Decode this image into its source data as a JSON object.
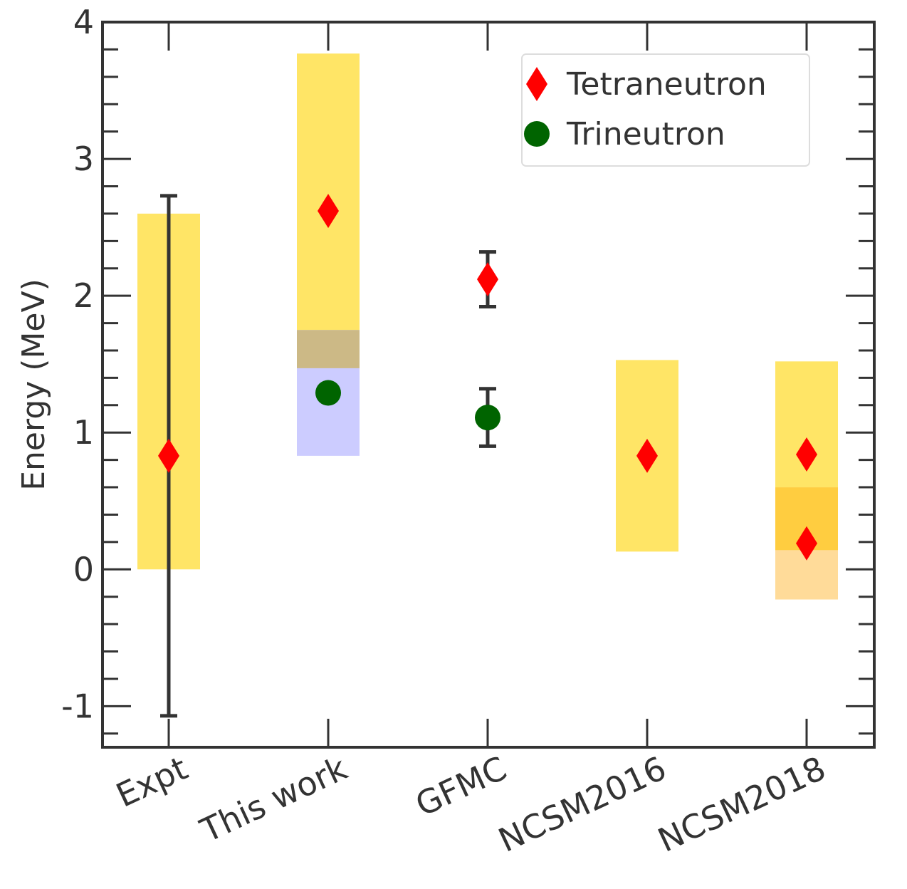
{
  "chart_data": {
    "type": "scatter",
    "ylabel": "Energy (MeV)",
    "ylim": [
      -1.3,
      4.0
    ],
    "yticks": [
      -1,
      0,
      1,
      2,
      3,
      4
    ],
    "yminor_step": 0.2,
    "categories": [
      "Expt",
      "This work",
      "GFMC",
      "NCSM2016",
      "NCSM2018"
    ],
    "legend": {
      "position": "top-right",
      "entries": [
        {
          "name": "Tetraneutron",
          "marker": "diamond",
          "color": "#ff0000"
        },
        {
          "name": "Trineutron",
          "marker": "circle",
          "color": "#006400"
        }
      ]
    },
    "bands": [
      {
        "category": "Expt",
        "low": 0.0,
        "high": 2.6,
        "color": "#ffe566"
      },
      {
        "category": "This work",
        "low": 1.75,
        "high": 3.77,
        "color": "#ffe566"
      },
      {
        "category": "This work",
        "low": 1.47,
        "high": 1.75,
        "color": "#ccb986"
      },
      {
        "category": "This work",
        "low": 0.83,
        "high": 1.47,
        "color": "#ccccff"
      },
      {
        "category": "NCSM2016",
        "low": 0.13,
        "high": 1.53,
        "color": "#ffe566"
      },
      {
        "category": "NCSM2018",
        "low": 0.6,
        "high": 1.52,
        "color": "#ffe566"
      },
      {
        "category": "NCSM2018",
        "low": 0.14,
        "high": 0.6,
        "color": "#ffcd40"
      },
      {
        "category": "NCSM2018",
        "low": -0.22,
        "high": 0.14,
        "color": "#ffdb99"
      }
    ],
    "series": [
      {
        "name": "Tetraneutron",
        "marker": "diamond",
        "color": "#ff0000",
        "points": [
          {
            "category": "Expt",
            "y": 0.83,
            "err_low": -1.07,
            "err_high": 2.73
          },
          {
            "category": "This work",
            "y": 2.62
          },
          {
            "category": "GFMC",
            "y": 2.12,
            "err_low": 1.92,
            "err_high": 2.32
          },
          {
            "category": "NCSM2016",
            "y": 0.83
          },
          {
            "category": "NCSM2018",
            "y": 0.84
          },
          {
            "category": "NCSM2018",
            "y": 0.19
          }
        ]
      },
      {
        "name": "Trineutron",
        "marker": "circle",
        "color": "#006400",
        "points": [
          {
            "category": "This work",
            "y": 1.29
          },
          {
            "category": "GFMC",
            "y": 1.11,
            "err_low": 0.9,
            "err_high": 1.32
          }
        ]
      }
    ]
  }
}
